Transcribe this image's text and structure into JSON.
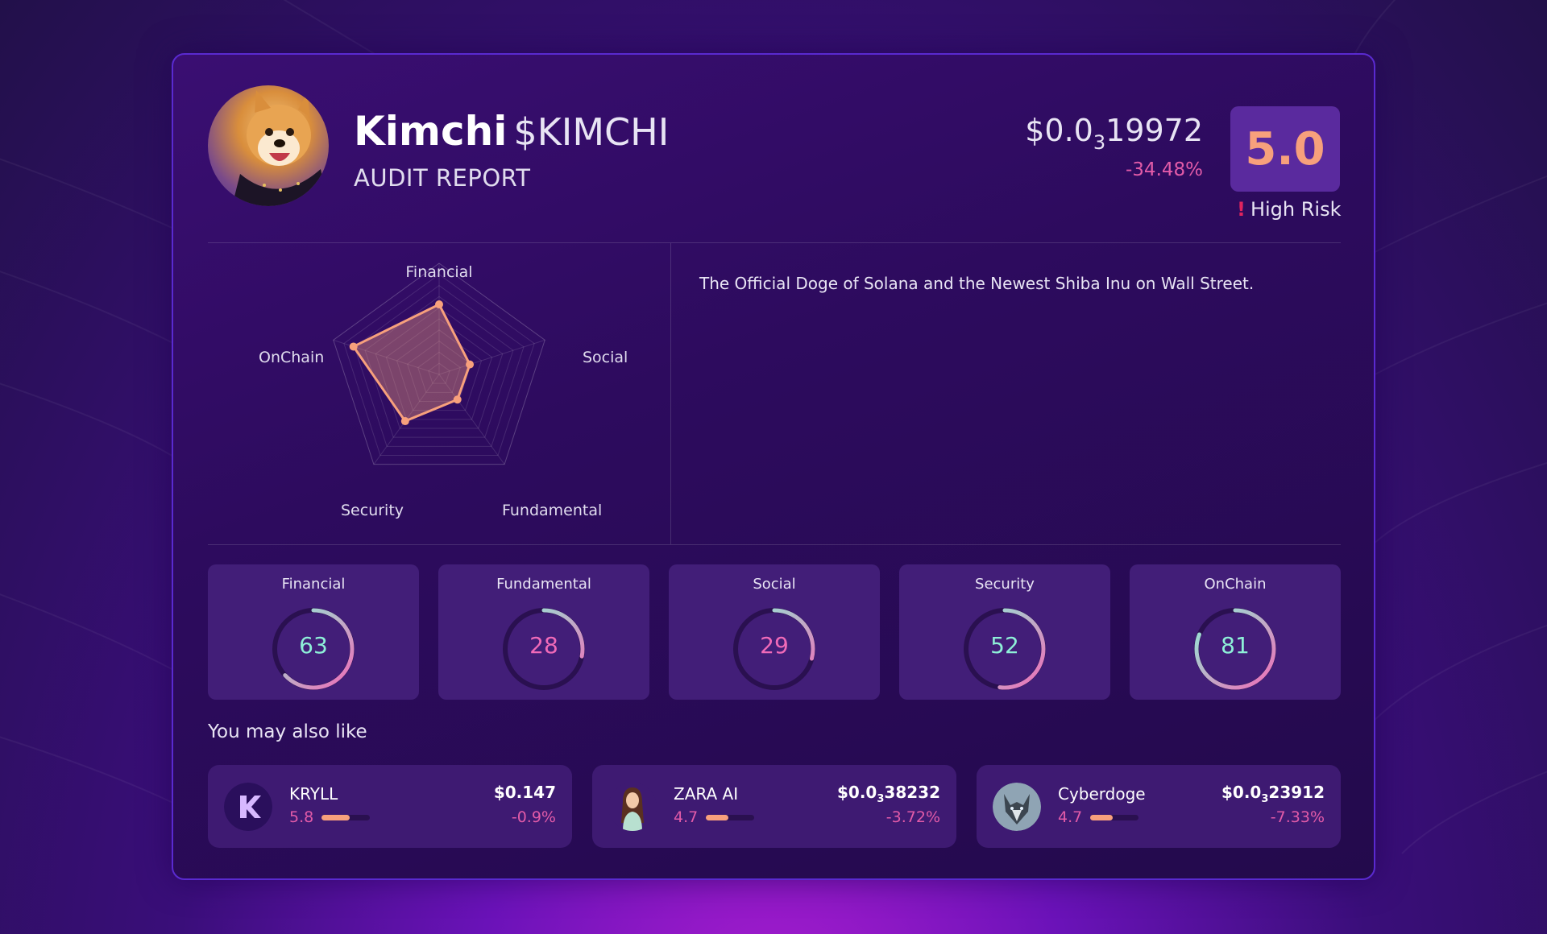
{
  "token": {
    "name": "Kimchi",
    "symbol": "$KIMCHI",
    "subtitle": "AUDIT REPORT",
    "price_prefix": "$0.0",
    "price_zeros": "3",
    "price_digits": "19972",
    "change": "-34.48%",
    "score": "5.0",
    "risk": "High Risk",
    "risk_mark": "!",
    "description": "The Official Doge of Solana and the Newest Shiba Inu on Wall Street."
  },
  "radar": {
    "axes": [
      "Financial",
      "Social",
      "Fundamental",
      "Security",
      "OnChain"
    ],
    "values": [
      63,
      29,
      28,
      52,
      81
    ],
    "max": 100
  },
  "scores": [
    {
      "label": "Financial",
      "value": "63",
      "pct": 63
    },
    {
      "label": "Fundamental",
      "value": "28",
      "pct": 28
    },
    {
      "label": "Social",
      "value": "29",
      "pct": 29
    },
    {
      "label": "Security",
      "value": "52",
      "pct": 52
    },
    {
      "label": "OnChain",
      "value": "81",
      "pct": 81
    }
  ],
  "colors": {
    "accent_orange": "#f7a07c",
    "accent_pink": "#e25ba8",
    "ring_teal": "#8ef0d8",
    "ring_pink": "#f06ab8"
  },
  "also_like": {
    "title": "You may also like",
    "items": [
      {
        "name": "KRYLL",
        "rating": "5.8",
        "rating_pct": 58,
        "price_prefix": "$0.147",
        "price_zeros": "",
        "price_digits": "",
        "change": "-0.9%",
        "logo": "kryll-logo-icon"
      },
      {
        "name": "ZARA AI",
        "rating": "4.7",
        "rating_pct": 47,
        "price_prefix": "$0.0",
        "price_zeros": "3",
        "price_digits": "38232",
        "change": "-3.72%",
        "logo": "zara-avatar-icon"
      },
      {
        "name": "Cyberdoge",
        "rating": "4.7",
        "rating_pct": 47,
        "price_prefix": "$0.0",
        "price_zeros": "3",
        "price_digits": "23912",
        "change": "-7.33%",
        "logo": "wolf-avatar-icon"
      }
    ]
  }
}
